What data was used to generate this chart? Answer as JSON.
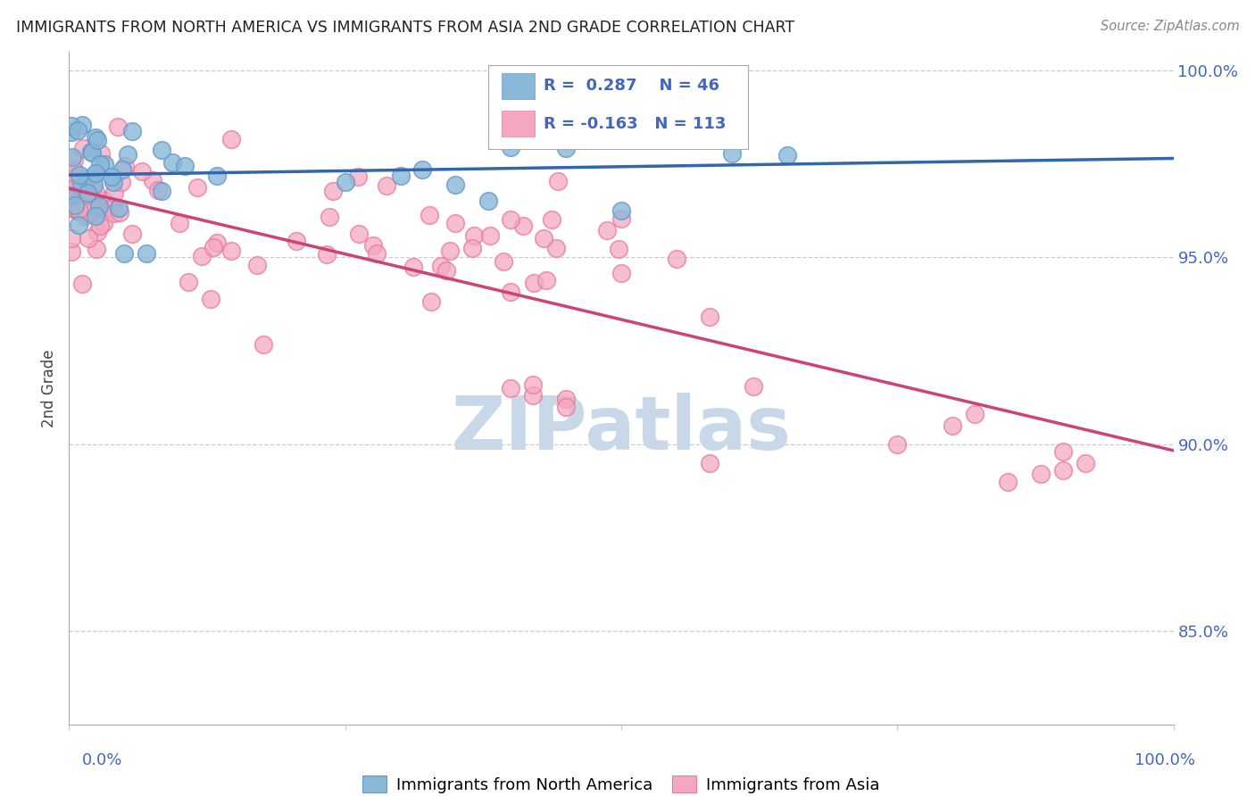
{
  "title": "IMMIGRANTS FROM NORTH AMERICA VS IMMIGRANTS FROM ASIA 2ND GRADE CORRELATION CHART",
  "source": "Source: ZipAtlas.com",
  "ylabel": "2nd Grade",
  "R1": 0.287,
  "N1": 46,
  "R2": -0.163,
  "N2": 113,
  "blue_color": "#89b8d8",
  "blue_edge_color": "#6699cc",
  "pink_color": "#f4a8c0",
  "pink_edge_color": "#e87aa0",
  "blue_line_color": "#3366aa",
  "pink_line_color": "#cc4477",
  "watermark_color": "#c8d8e8",
  "tick_label_color": "#4466bb",
  "title_color": "#222222",
  "source_color": "#888888",
  "ylabel_color": "#444444",
  "grid_color": "#cccccc",
  "background_color": "#ffffff",
  "legend_label1": "Immigrants from North America",
  "legend_label2": "Immigrants from Asia",
  "x_lim": [
    0.0,
    1.0
  ],
  "y_lim": [
    0.825,
    1.005
  ],
  "y_ticks": [
    0.85,
    0.9,
    0.95,
    1.0
  ],
  "y_tick_labels": [
    "85.0%",
    "90.0%",
    "95.0%",
    "100.0%"
  ]
}
